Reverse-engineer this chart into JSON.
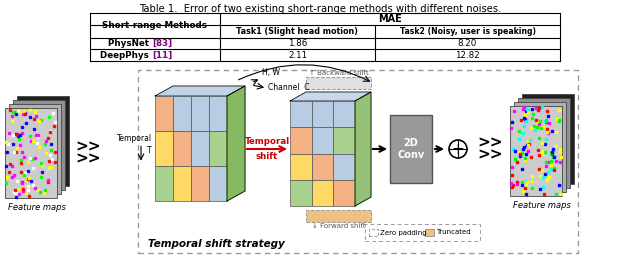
{
  "title": "Table 1.  Error of two existing short-range methods with different noises.",
  "mae_header": "MAE",
  "table_rows": [
    [
      "PhysNet [83]",
      "1.86",
      "8.20"
    ],
    [
      "DeepPhys [11]",
      "2.11",
      "12.82"
    ]
  ],
  "bg_color": "#ffffff",
  "temporal_shift_color": "#cc0000",
  "cell_colors_front": [
    [
      "#f4b183",
      "#b8cce4",
      "#b8cce4",
      "#b8cce4"
    ],
    [
      "#ffd966",
      "#f4b183",
      "#b8cce4",
      "#a9d18e"
    ],
    [
      "#a9d18e",
      "#ffd966",
      "#f4b183",
      "#b8cce4"
    ]
  ],
  "cell_colors_front2": [
    [
      "#b8cce4",
      "#b8cce4",
      "#b8cce4"
    ],
    [
      "#f4b183",
      "#b8cce4",
      "#a9d18e"
    ],
    [
      "#ffd966",
      "#f4b183",
      "#b8cce4"
    ],
    [
      "#a9d18e",
      "#ffd966",
      "#f4b183"
    ]
  ],
  "cube_top_color": "#b8cce4",
  "cube_side_color": "#70ad47",
  "conv_color": "#999999",
  "noise_colors": [
    "#ff0000",
    "#00ff00",
    "#0000ff",
    "#ffff00",
    "#ffffff",
    "#ff00ff"
  ],
  "noise_colors2": [
    "#ff0000",
    "#00ff00",
    "#0000ff",
    "#ffff00",
    "#ff00ff",
    "#00ffff"
  ]
}
